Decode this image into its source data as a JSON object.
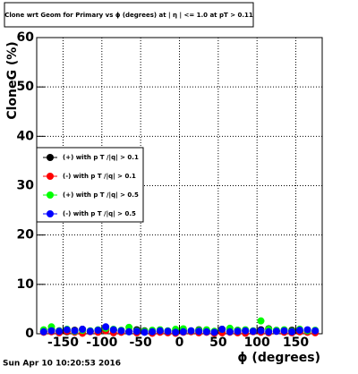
{
  "chart_data": {
    "type": "scatter",
    "title": "Clone wrt Geom for Primary vs ϕ (degrees) at | η | <= 1.0 at pT > 0.11",
    "x_label": "ϕ (degrees)",
    "y_label": "CloneG (%)",
    "footer": "Sun Apr 10 10:20:53 2016",
    "xlim": [
      -184,
      184
    ],
    "ylim": [
      0,
      60
    ],
    "xticks": [
      -150,
      -100,
      -50,
      0,
      50,
      100,
      150
    ],
    "yticks": [
      0,
      10,
      20,
      30,
      40,
      50,
      60
    ],
    "grid": true,
    "legend": "left",
    "x": [
      -175,
      -165,
      -155,
      -145,
      -135,
      -125,
      -115,
      -105,
      -95,
      -85,
      -75,
      -65,
      -55,
      -45,
      -35,
      -25,
      -15,
      -5,
      5,
      15,
      25,
      35,
      45,
      55,
      65,
      75,
      85,
      95,
      105,
      115,
      125,
      135,
      145,
      155,
      165,
      175
    ],
    "series": [
      {
        "name": "(+) with p T /|q| > 0.1",
        "color": "#000000",
        "values": [
          0.5,
          0.8,
          0.6,
          0.4,
          0.7,
          0.9,
          0.5,
          0.6,
          1.0,
          0.7,
          0.5,
          0.4,
          0.8,
          0.6,
          0.3,
          0.5,
          0.4,
          0.6,
          0.7,
          0.5,
          0.8,
          0.6,
          0.4,
          0.9,
          0.5,
          0.7,
          0.6,
          0.5,
          0.8,
          1.0,
          0.6,
          0.5,
          0.7,
          0.4,
          0.6,
          0.5
        ]
      },
      {
        "name": "(-) with p T /|q| > 0.1",
        "color": "#ff0000",
        "values": [
          0.3,
          0.4,
          0.2,
          0.5,
          0.3,
          0.1,
          0.4,
          0.3,
          0.6,
          0.2,
          0.3,
          0.5,
          0.2,
          0.4,
          0.1,
          0.3,
          0.2,
          0.1,
          0.3,
          0.4,
          0.2,
          0.3,
          0.1,
          0.2,
          0.3,
          0.2,
          0.1,
          0.4,
          0.3,
          0.2,
          0.5,
          0.3,
          0.2,
          0.4,
          0.3,
          0.2
        ]
      },
      {
        "name": "(+) with p T /|q| > 0.5",
        "color": "#00ff00",
        "values": [
          0.8,
          1.4,
          0.6,
          0.9,
          0.5,
          0.7,
          0.6,
          0.8,
          1.1,
          0.9,
          0.7,
          1.3,
          0.6,
          0.5,
          0.7,
          0.8,
          0.6,
          0.9,
          1.0,
          0.6,
          0.7,
          0.8,
          0.5,
          0.9,
          1.1,
          0.7,
          0.8,
          0.6,
          2.6,
          0.9,
          0.7,
          0.8,
          0.5,
          0.9,
          0.6,
          0.7
        ]
      },
      {
        "name": "(-) with p T /|q| > 0.5",
        "color": "#0000ff",
        "values": [
          0.4,
          0.6,
          0.5,
          0.8,
          0.6,
          0.9,
          0.5,
          0.7,
          1.4,
          0.8,
          0.6,
          0.4,
          0.5,
          0.3,
          0.4,
          0.6,
          0.5,
          0.3,
          0.4,
          0.6,
          0.5,
          0.4,
          0.3,
          0.9,
          0.4,
          0.5,
          0.6,
          0.5,
          0.6,
          0.4,
          0.5,
          0.6,
          0.4,
          0.7,
          0.8,
          0.6
        ]
      }
    ]
  }
}
